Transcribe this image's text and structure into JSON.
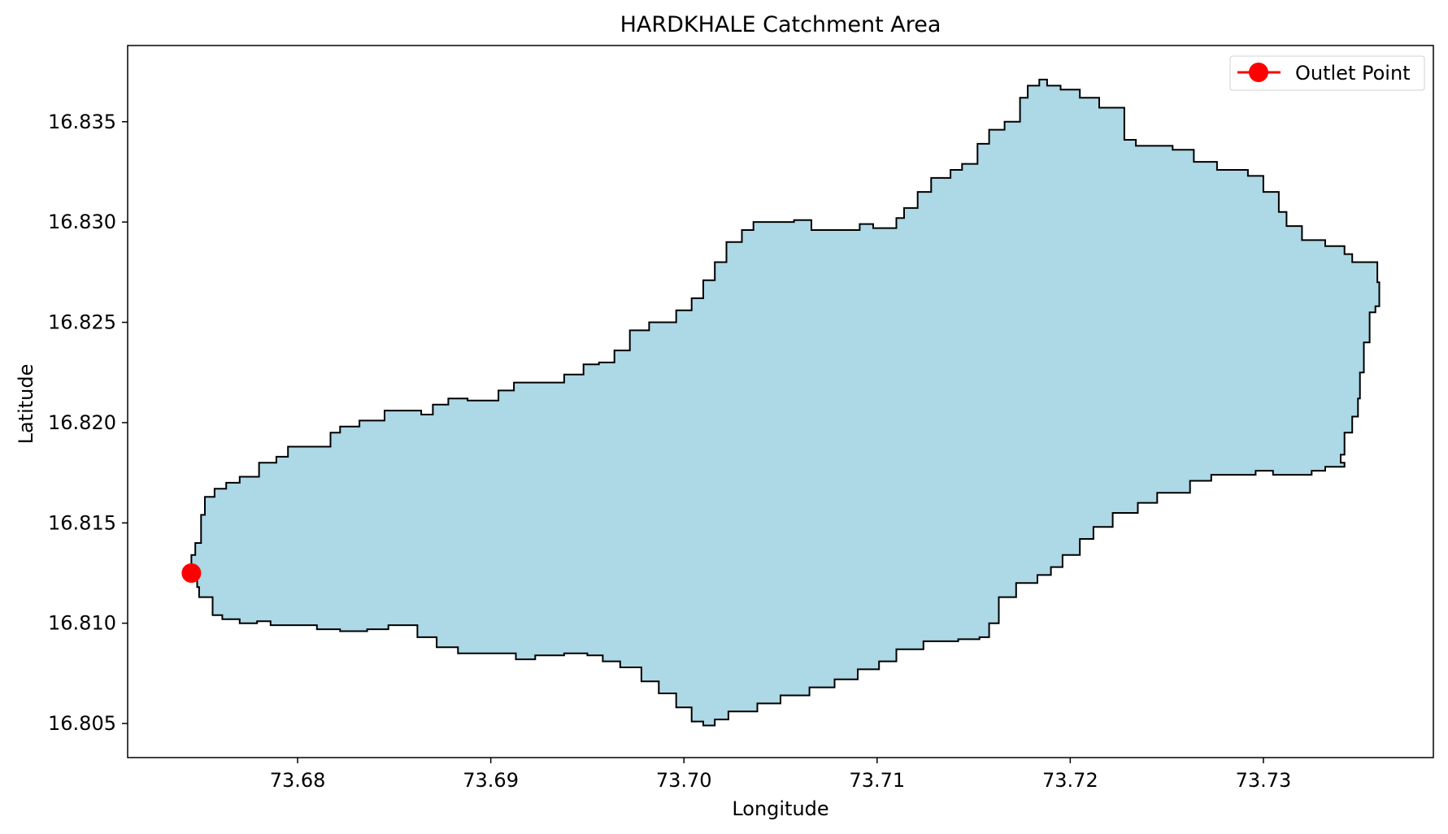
{
  "chart_data": {
    "type": "map",
    "title": "HARDKHALE Catchment Area",
    "xlabel": "Longitude",
    "ylabel": "Latitude",
    "xlim": [
      73.6712,
      73.7388
    ],
    "ylim": [
      16.8033,
      16.8388
    ],
    "xticks": [
      73.68,
      73.69,
      73.7,
      73.71,
      73.72,
      73.73
    ],
    "xtick_labels": [
      "73.68",
      "73.69",
      "73.70",
      "73.71",
      "73.72",
      "73.73"
    ],
    "yticks": [
      16.805,
      16.81,
      16.815,
      16.82,
      16.825,
      16.83,
      16.835
    ],
    "ytick_labels": [
      "16.805",
      "16.810",
      "16.815",
      "16.820",
      "16.825",
      "16.830",
      "16.835"
    ],
    "grid": false,
    "legend_position": "top-right",
    "legend": [
      {
        "label": "Outlet Point",
        "color": "#ff0000",
        "marker": "circle"
      }
    ],
    "colors": {
      "catchment_fill": "#add8e6",
      "catchment_edge": "#000000",
      "outlet": "#ff0000"
    },
    "outlet_point": {
      "lon": 73.6745,
      "lat": 16.8125
    },
    "catchment_boundary": [
      [
        73.6745,
        16.8127
      ],
      [
        73.6747,
        16.8134
      ],
      [
        73.675,
        16.814
      ],
      [
        73.6752,
        16.8154
      ],
      [
        73.6757,
        16.8163
      ],
      [
        73.6763,
        16.8167
      ],
      [
        73.677,
        16.817
      ],
      [
        73.678,
        16.8173
      ],
      [
        73.6789,
        16.818
      ],
      [
        73.6795,
        16.8183
      ],
      [
        73.68,
        16.8188
      ],
      [
        73.6817,
        16.8188
      ],
      [
        73.6822,
        16.8195
      ],
      [
        73.6832,
        16.8198
      ],
      [
        73.6845,
        16.8201
      ],
      [
        73.6852,
        16.8206
      ],
      [
        73.6864,
        16.8206
      ],
      [
        73.687,
        16.8204
      ],
      [
        73.6878,
        16.8209
      ],
      [
        73.6888,
        16.8212
      ],
      [
        73.6904,
        16.8211
      ],
      [
        73.6912,
        16.8216
      ],
      [
        73.6922,
        16.822
      ],
      [
        73.6938,
        16.822
      ],
      [
        73.6948,
        16.8224
      ],
      [
        73.6956,
        16.8229
      ],
      [
        73.6964,
        16.823
      ],
      [
        73.6972,
        16.8236
      ],
      [
        73.6982,
        16.8246
      ],
      [
        73.6996,
        16.825
      ],
      [
        73.7004,
        16.8256
      ],
      [
        73.701,
        16.8262
      ],
      [
        73.7016,
        16.8271
      ],
      [
        73.7022,
        16.828
      ],
      [
        73.703,
        16.829
      ],
      [
        73.7036,
        16.8296
      ],
      [
        73.7041,
        16.83
      ],
      [
        73.7057,
        16.83
      ],
      [
        73.7066,
        16.8301
      ],
      [
        73.7072,
        16.8296
      ],
      [
        73.7091,
        16.8296
      ],
      [
        73.7098,
        16.8299
      ],
      [
        73.711,
        16.8297
      ],
      [
        73.7114,
        16.8302
      ],
      [
        73.7121,
        16.8307
      ],
      [
        73.7128,
        16.8315
      ],
      [
        73.7138,
        16.8322
      ],
      [
        73.7144,
        16.8326
      ],
      [
        73.7152,
        16.8329
      ],
      [
        73.7158,
        16.8339
      ],
      [
        73.7166,
        16.8346
      ],
      [
        73.7174,
        16.835
      ],
      [
        73.7178,
        16.8362
      ],
      [
        73.7184,
        16.8368
      ],
      [
        73.7188,
        16.8371
      ],
      [
        73.7195,
        16.8368
      ],
      [
        73.7205,
        16.8366
      ],
      [
        73.7215,
        16.8362
      ],
      [
        73.7228,
        16.8357
      ],
      [
        73.7234,
        16.8341
      ],
      [
        73.7253,
        16.8338
      ],
      [
        73.7264,
        16.8336
      ],
      [
        73.7276,
        16.833
      ],
      [
        73.7292,
        16.8326
      ],
      [
        73.73,
        16.8323
      ],
      [
        73.7308,
        16.8315
      ],
      [
        73.7312,
        16.8305
      ],
      [
        73.732,
        16.8298
      ],
      [
        73.7332,
        16.8291
      ],
      [
        73.7342,
        16.8288
      ],
      [
        73.7346,
        16.8284
      ],
      [
        73.7359,
        16.828
      ],
      [
        73.736,
        16.827
      ],
      [
        73.7358,
        16.8258
      ],
      [
        73.7355,
        16.8255
      ],
      [
        73.7352,
        16.824
      ],
      [
        73.735,
        16.8225
      ],
      [
        73.7349,
        16.8212
      ],
      [
        73.7346,
        16.8203
      ],
      [
        73.7342,
        16.8195
      ],
      [
        73.734,
        16.8184
      ],
      [
        73.7342,
        16.818
      ],
      [
        73.7332,
        16.8178
      ],
      [
        73.7325,
        16.8176
      ],
      [
        73.7319,
        16.8174
      ],
      [
        73.7305,
        16.8174
      ],
      [
        73.7296,
        16.8176
      ],
      [
        73.7288,
        16.8174
      ],
      [
        73.7273,
        16.8174
      ],
      [
        73.7262,
        16.8171
      ],
      [
        73.7256,
        16.8165
      ],
      [
        73.7245,
        16.8165
      ],
      [
        73.7235,
        16.816
      ],
      [
        73.7222,
        16.8155
      ],
      [
        73.7212,
        16.8148
      ],
      [
        73.7205,
        16.8142
      ],
      [
        73.7196,
        16.8134
      ],
      [
        73.719,
        16.8128
      ],
      [
        73.7183,
        16.8124
      ],
      [
        73.7172,
        16.812
      ],
      [
        73.7163,
        16.8113
      ],
      [
        73.7158,
        16.81
      ],
      [
        73.7153,
        16.8093
      ],
      [
        73.7142,
        16.8092
      ],
      [
        73.7124,
        16.8091
      ],
      [
        73.711,
        16.8087
      ],
      [
        73.7101,
        16.8081
      ],
      [
        73.709,
        16.8077
      ],
      [
        73.7078,
        16.8072
      ],
      [
        73.7065,
        16.8068
      ],
      [
        73.705,
        16.8064
      ],
      [
        73.7038,
        16.806
      ],
      [
        73.7023,
        16.8056
      ],
      [
        73.7016,
        16.8052
      ],
      [
        73.701,
        16.8049
      ],
      [
        73.7004,
        16.8051
      ],
      [
        73.6996,
        16.8058
      ],
      [
        73.6987,
        16.8065
      ],
      [
        73.6978,
        16.8071
      ],
      [
        73.6967,
        16.8078
      ],
      [
        73.6958,
        16.8081
      ],
      [
        73.695,
        16.8084
      ],
      [
        73.6938,
        16.8085
      ],
      [
        73.6923,
        16.8084
      ],
      [
        73.6913,
        16.8082
      ],
      [
        73.6897,
        16.8085
      ],
      [
        73.6883,
        16.8085
      ],
      [
        73.6872,
        16.8088
      ],
      [
        73.6862,
        16.8093
      ],
      [
        73.6858,
        16.8099
      ],
      [
        73.6847,
        16.8099
      ],
      [
        73.6836,
        16.8097
      ],
      [
        73.6822,
        16.8096
      ],
      [
        73.681,
        16.8097
      ],
      [
        73.6797,
        16.8099
      ],
      [
        73.6786,
        16.8099
      ],
      [
        73.6779,
        16.8101
      ],
      [
        73.677,
        16.81
      ],
      [
        73.6761,
        16.8102
      ],
      [
        73.6756,
        16.8104
      ],
      [
        73.6749,
        16.8113
      ],
      [
        73.6748,
        16.8118
      ],
      [
        73.6746,
        16.8122
      ]
    ]
  }
}
